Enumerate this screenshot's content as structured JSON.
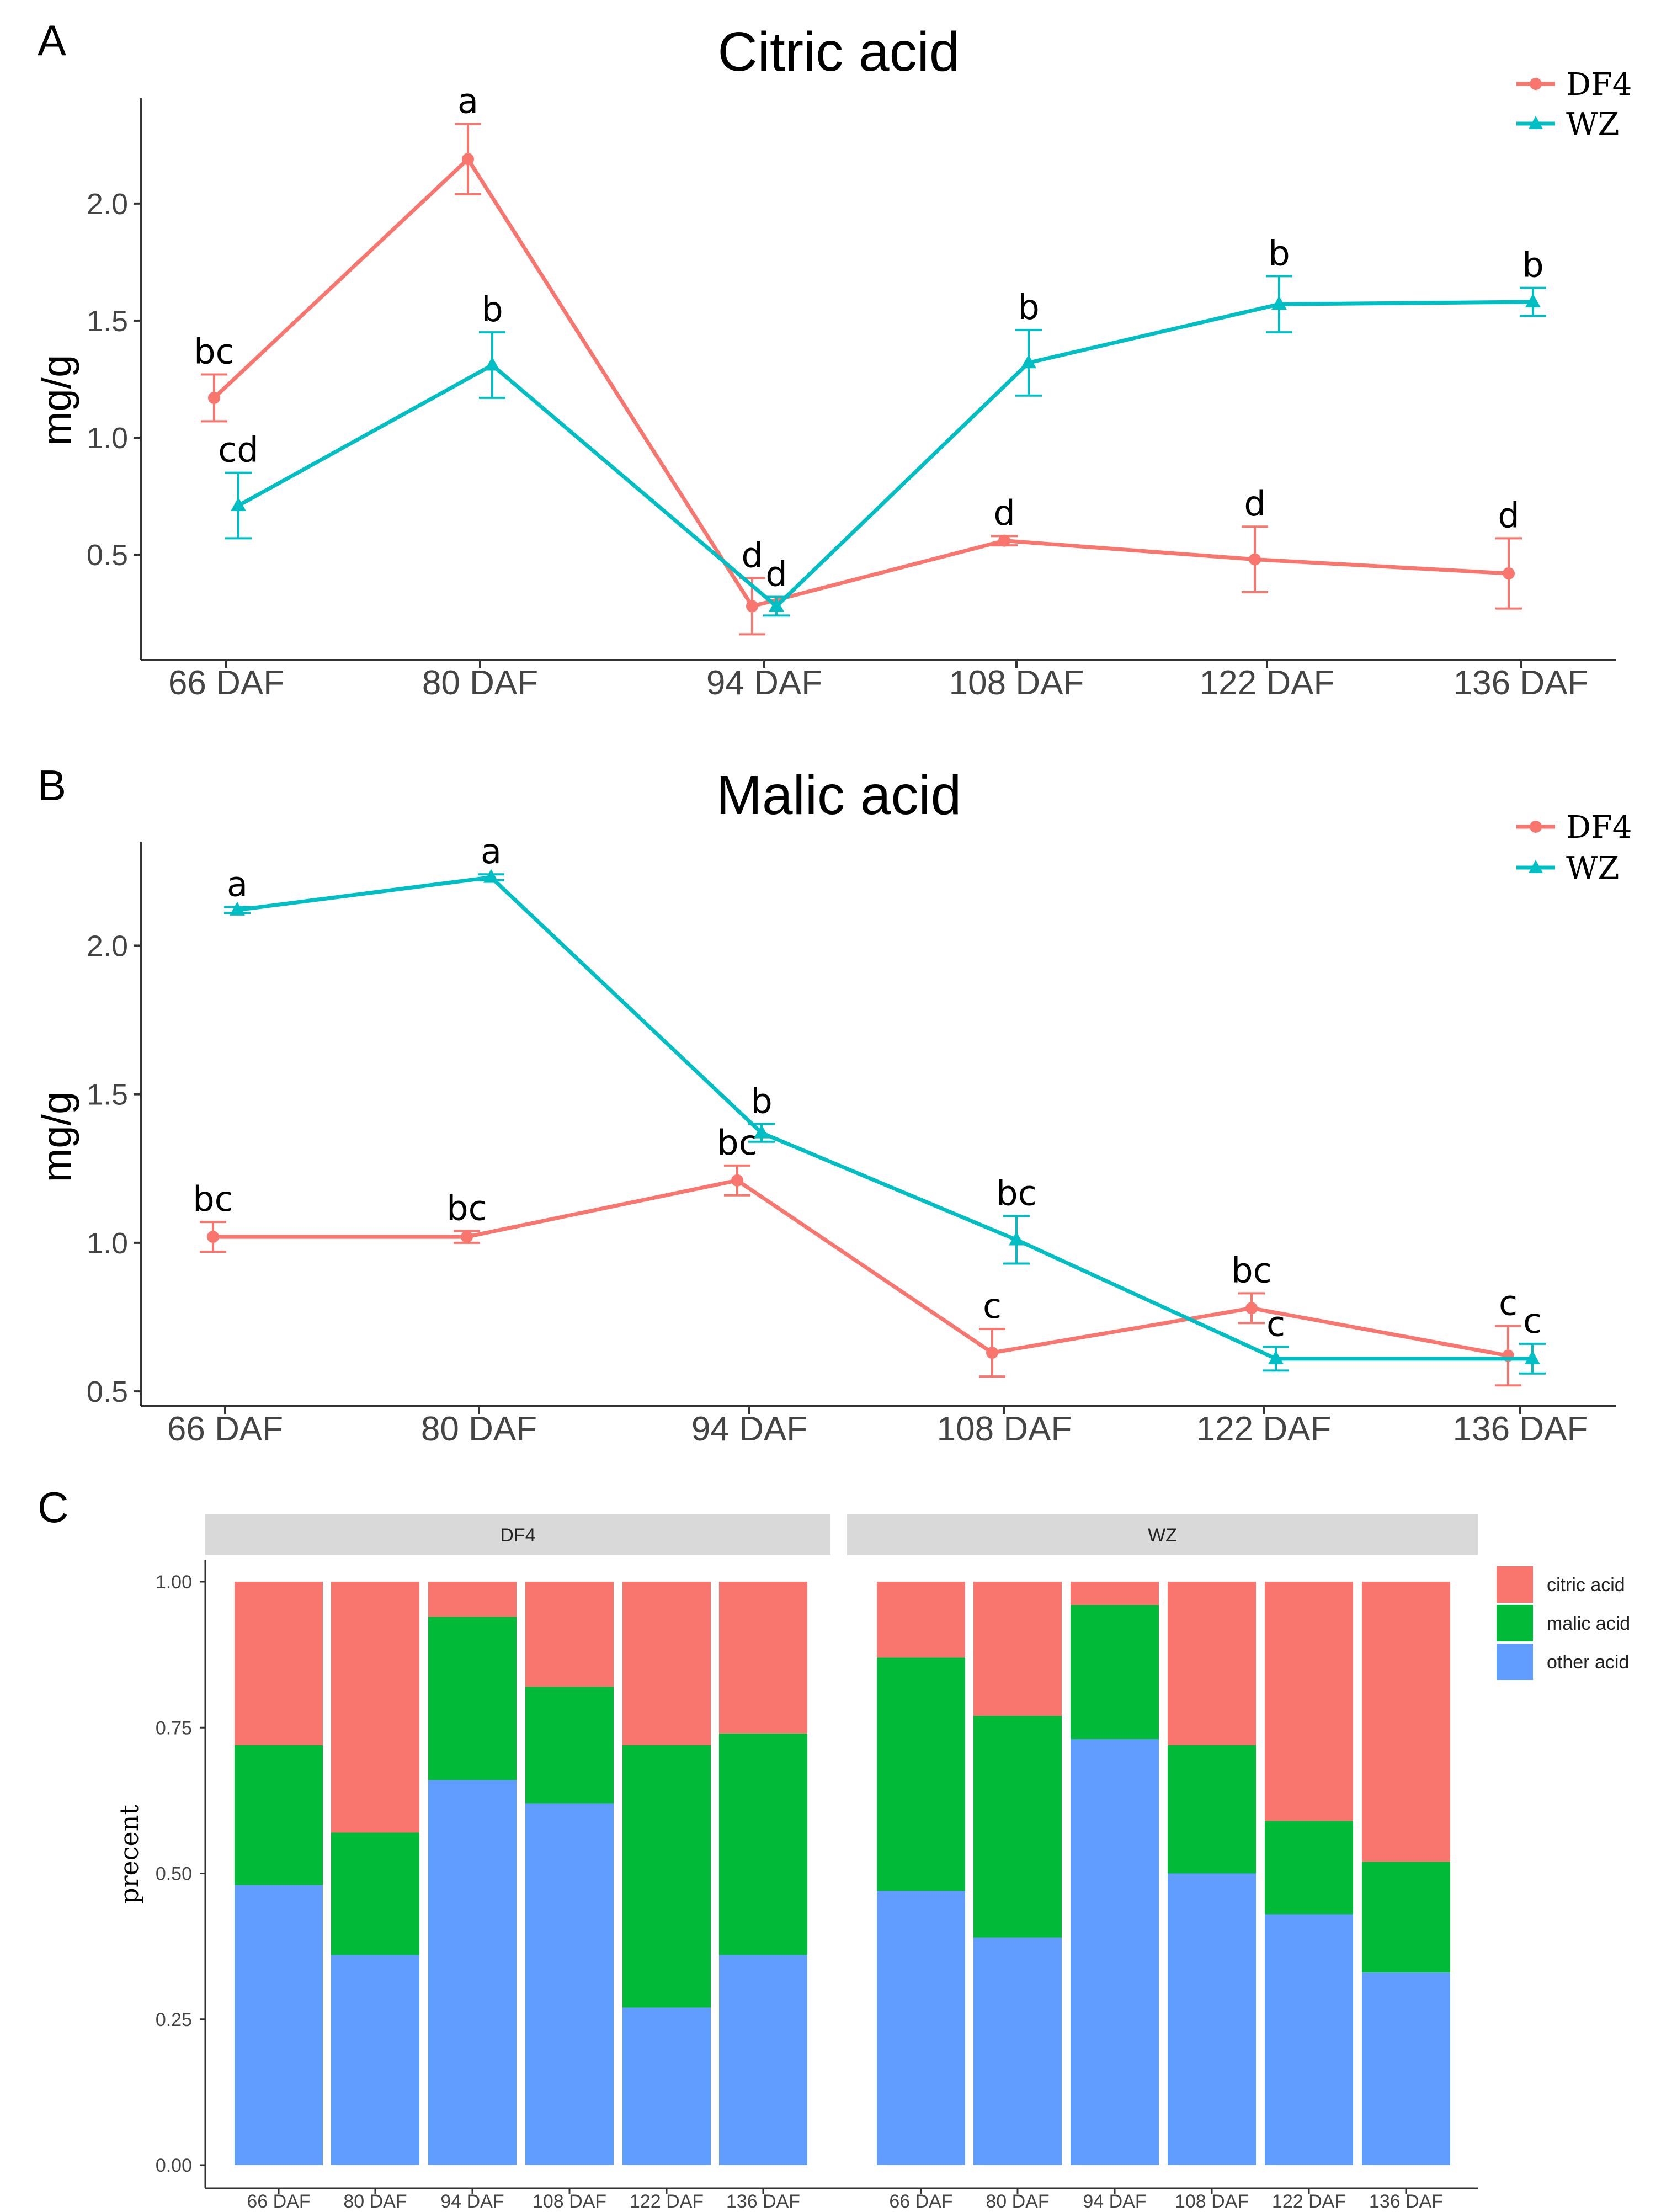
{
  "colors": {
    "DF4": "#F8766D",
    "WZ": "#00BFC4",
    "citric": "#F8766D",
    "malic": "#00BA38",
    "other": "#619CFF",
    "strip": "#D9D9D9"
  },
  "chart_data": [
    {
      "panel": "A",
      "type": "line",
      "title": "Citric acid",
      "xlabel": "",
      "ylabel": "mg/g",
      "categories": [
        "66 DAF",
        "80 DAF",
        "94 DAF",
        "108 DAF",
        "122 DAF",
        "136 DAF"
      ],
      "ylim": [
        0.05,
        2.45
      ],
      "yticks": [
        0.5,
        1.0,
        1.5,
        2.0
      ],
      "ytick_labels": [
        "0.5",
        "1.0",
        "1.5",
        "2.0"
      ],
      "legend": [
        "DF4",
        "WZ"
      ],
      "series": [
        {
          "name": "DF4",
          "marker": "circle",
          "values": [
            1.17,
            2.19,
            0.28,
            0.56,
            0.48,
            0.42
          ],
          "errors": [
            0.1,
            0.15,
            0.12,
            0.02,
            0.14,
            0.15
          ],
          "letters": [
            "bc",
            "a",
            "d",
            "d",
            "d",
            "d"
          ]
        },
        {
          "name": "WZ",
          "marker": "triangle",
          "values": [
            0.71,
            1.31,
            0.28,
            1.32,
            1.57,
            1.58
          ],
          "errors": [
            0.14,
            0.14,
            0.04,
            0.14,
            0.12,
            0.06
          ],
          "letters": [
            "cd",
            "b",
            "d",
            "b",
            "b",
            "b"
          ]
        }
      ]
    },
    {
      "panel": "B",
      "type": "line",
      "title": "Malic acid",
      "xlabel": "",
      "ylabel": "mg/g",
      "categories": [
        "66 DAF",
        "80 DAF",
        "94 DAF",
        "108 DAF",
        "122 DAF",
        "136 DAF"
      ],
      "ylim": [
        0.45,
        2.35
      ],
      "yticks": [
        0.5,
        1.0,
        1.5,
        2.0
      ],
      "ytick_labels": [
        "0.5",
        "1.0",
        "1.5",
        "2.0"
      ],
      "legend": [
        "DF4",
        "WZ"
      ],
      "series": [
        {
          "name": "DF4",
          "marker": "circle",
          "values": [
            1.02,
            1.02,
            1.21,
            0.63,
            0.78,
            0.62
          ],
          "errors": [
            0.05,
            0.02,
            0.05,
            0.08,
            0.05,
            0.1
          ],
          "letters": [
            "bc",
            "bc",
            "bc",
            "c",
            "bc",
            "c"
          ]
        },
        {
          "name": "WZ",
          "marker": "triangle",
          "values": [
            2.12,
            2.23,
            1.37,
            1.01,
            0.61,
            0.61
          ],
          "errors": [
            0.01,
            0.01,
            0.03,
            0.08,
            0.04,
            0.05
          ],
          "letters": [
            "a",
            "a",
            "b",
            "bc",
            "c",
            "c"
          ]
        }
      ]
    },
    {
      "panel": "C",
      "type": "bar",
      "stacked": true,
      "title": "",
      "xlabel": "",
      "ylabel": "precent",
      "facets": [
        "DF4",
        "WZ"
      ],
      "categories": [
        "66 DAF",
        "80 DAF",
        "94 DAF",
        "108 DAF",
        "122 DAF",
        "136 DAF"
      ],
      "ylim": [
        0,
        1
      ],
      "yticks": [
        0,
        0.25,
        0.5,
        0.75,
        1.0
      ],
      "ytick_labels": [
        "0.00",
        "0.25",
        "0.50",
        "0.75",
        "1.00"
      ],
      "legend": [
        "citric acid",
        "malic acid",
        "other acid"
      ],
      "series": [
        {
          "facet": "DF4",
          "other": [
            0.48,
            0.36,
            0.66,
            0.62,
            0.27,
            0.36
          ],
          "malic": [
            0.24,
            0.21,
            0.28,
            0.2,
            0.45,
            0.38
          ],
          "citric": [
            0.28,
            0.43,
            0.06,
            0.18,
            0.28,
            0.26
          ]
        },
        {
          "facet": "WZ",
          "other": [
            0.47,
            0.39,
            0.73,
            0.5,
            0.43,
            0.33
          ],
          "malic": [
            0.4,
            0.38,
            0.23,
            0.22,
            0.16,
            0.19
          ],
          "citric": [
            0.13,
            0.23,
            0.04,
            0.28,
            0.41,
            0.48
          ]
        }
      ]
    }
  ]
}
